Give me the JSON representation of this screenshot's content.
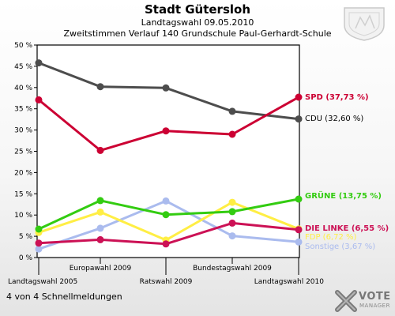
{
  "header": {
    "title": "Stadt Gütersloh",
    "subtitle": "Landtagswahl 09.05.2010",
    "subtitle2": "Zweitstimmen Verlauf 140 Grundschule Paul-Gerhardt-Schule"
  },
  "footer": {
    "text": "4 von 4 Schnellmeldungen"
  },
  "logo": {
    "vote": "VOTE",
    "manager": "MANAGER",
    "icon": "vote-manager-x-icon"
  },
  "crest": {
    "icon": "coat-of-arms-icon"
  },
  "chart_data": {
    "type": "line",
    "categories": [
      "Landtagswahl 2005",
      "Europawahl 2009",
      "Ratswahl 2009",
      "Bundestagswahl 2009",
      "Landtagswahl 2010"
    ],
    "ylim": [
      0,
      50
    ],
    "yticks": [
      "0 %",
      "5 %",
      "10 %",
      "15 %",
      "20 %",
      "25 %",
      "30 %",
      "35 %",
      "40 %",
      "45 %",
      "50 %"
    ],
    "grid": false,
    "series": [
      {
        "name": "SPD",
        "label": "SPD (37,73 %)",
        "color": "#cc0033",
        "values": [
          37.1,
          25.2,
          29.8,
          29.0,
          37.73
        ]
      },
      {
        "name": "CDU",
        "label": "CDU (32,60 %)",
        "color": "#4d4d4d",
        "values": [
          45.8,
          40.2,
          39.9,
          34.4,
          32.6
        ]
      },
      {
        "name": "GRÜNE",
        "label": "GRÜNE (13,75 %)",
        "color": "#33cc11",
        "values": [
          6.7,
          13.4,
          10.1,
          10.8,
          13.75
        ]
      },
      {
        "name": "DIE LINKE",
        "label": "DIE LINKE (6,55 %)",
        "color": "#cc1155",
        "values": [
          3.4,
          4.2,
          3.2,
          8.1,
          6.55
        ]
      },
      {
        "name": "FDP",
        "label": "FDP (6,72 %)",
        "color": "#ffee44",
        "values": [
          5.9,
          10.7,
          4.1,
          13.0,
          6.72
        ]
      },
      {
        "name": "Sonstige",
        "label": "Sonstige (3,67 %)",
        "color": "#aabbee",
        "values": [
          2.0,
          6.9,
          13.3,
          5.1,
          3.67
        ]
      }
    ]
  }
}
